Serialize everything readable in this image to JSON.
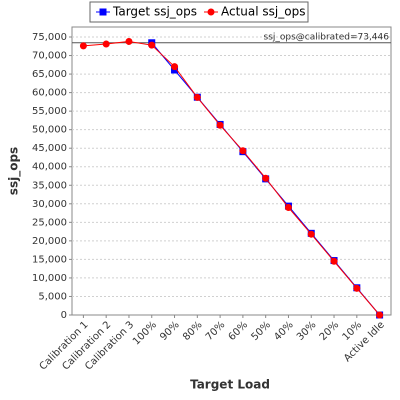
{
  "chart_data": {
    "type": "line",
    "x_label": "Target Load",
    "y_label": "ssj_ops",
    "categories": [
      "Calibration 1",
      "Calibration 2",
      "Calibration 3",
      "100%",
      "90%",
      "80%",
      "70%",
      "60%",
      "50%",
      "40%",
      "30%",
      "20%",
      "10%",
      "Active Idle"
    ],
    "series": [
      {
        "name": "Target ssj_ops",
        "color": "#0000ff",
        "marker": "square",
        "values": [
          null,
          null,
          null,
          73446,
          66101,
          58757,
          51412,
          44068,
          36723,
          29378,
          22034,
          14689,
          7345,
          0
        ]
      },
      {
        "name": "Actual ssj_ops",
        "color": "#ff0000",
        "marker": "circle",
        "values": [
          72600,
          73100,
          73800,
          72800,
          67000,
          58700,
          51200,
          44300,
          36900,
          29000,
          21800,
          14500,
          7200,
          0
        ]
      }
    ],
    "reference_line": {
      "value": 73446,
      "label": "ssj_ops@calibrated=73,446"
    },
    "ylim": [
      0,
      77700
    ],
    "yticks": [
      0,
      {
        "value": 5000,
        "label": "5,000"
      },
      {
        "value": 10000,
        "label": "10,000"
      },
      {
        "value": 15000,
        "label": "15,000"
      },
      {
        "value": 20000,
        "label": "20,000"
      },
      {
        "value": 25000,
        "label": "25,000"
      },
      {
        "value": 30000,
        "label": "30,000"
      },
      {
        "value": 35000,
        "label": "35,000"
      },
      {
        "value": 40000,
        "label": "40,000"
      },
      {
        "value": 45000,
        "label": "45,000"
      },
      {
        "value": 50000,
        "label": "50,000"
      },
      {
        "value": 55000,
        "label": "55,000"
      },
      {
        "value": 60000,
        "label": "60,000"
      },
      {
        "value": 65000,
        "label": "65,000"
      },
      {
        "value": 70000,
        "label": "70,000"
      },
      {
        "value": 75000,
        "label": "75,000"
      }
    ],
    "grid": true,
    "legend": "top"
  }
}
